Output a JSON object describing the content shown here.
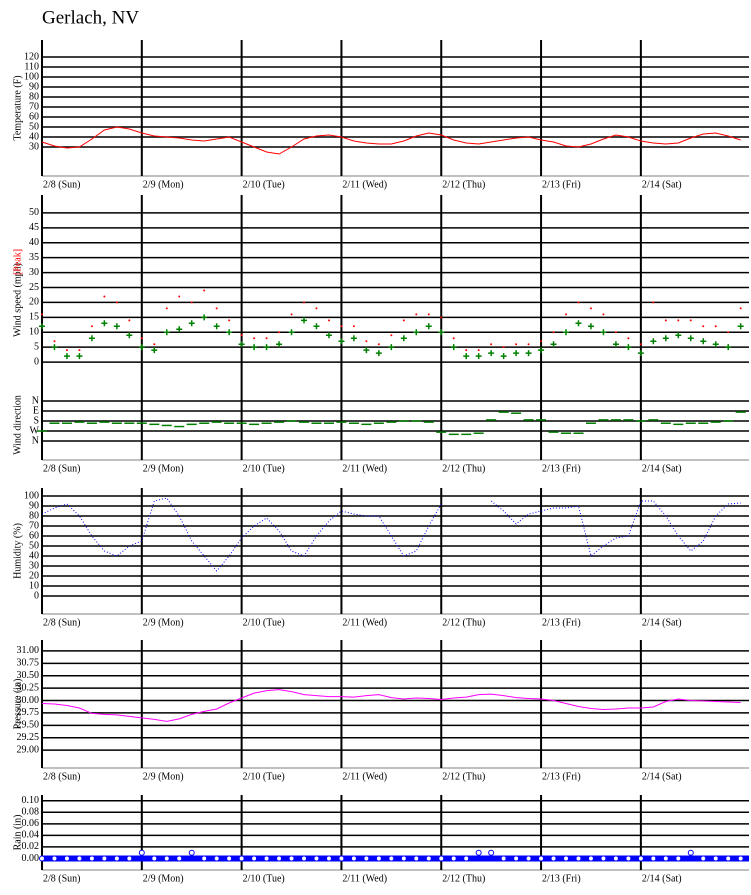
{
  "chart_data": [
    {
      "type": "line",
      "title": "Gerlach, NV",
      "ylabel": "Temperature (F)",
      "x": [
        0,
        3,
        6,
        9,
        12,
        15,
        18,
        21,
        24,
        27,
        30,
        33,
        36,
        39,
        42,
        45,
        48,
        51,
        54,
        57,
        60,
        63,
        66,
        69,
        72,
        75,
        78,
        81,
        84,
        87,
        90,
        93,
        96,
        99,
        102,
        105,
        108,
        111,
        114,
        117,
        120,
        123,
        126,
        129,
        132,
        135,
        138,
        141,
        144,
        147,
        150,
        153,
        156,
        159,
        162,
        165,
        168
      ],
      "xlim": [
        0,
        170
      ],
      "xticks": [
        {
          "value": 0,
          "label": "2/8 (Sun)"
        },
        {
          "value": 24,
          "label": "2/9 (Mon)"
        },
        {
          "value": 48,
          "label": "2/10 (Tue)"
        },
        {
          "value": 72,
          "label": "2/11 (Wed)"
        },
        {
          "value": 96,
          "label": "2/12 (Thu)"
        },
        {
          "value": 120,
          "label": "2/13 (Fri)"
        },
        {
          "value": 144,
          "label": "2/14 (Sat)"
        }
      ],
      "ylim": [
        1,
        137
      ],
      "yticks": [
        30,
        40,
        50,
        60,
        70,
        80,
        90,
        100,
        110,
        120
      ],
      "grid": true,
      "series": [
        {
          "color": "#ff0000",
          "marker": "line",
          "values": [
            35,
            31,
            29,
            30,
            38,
            47,
            50,
            48,
            44,
            41,
            40,
            39,
            37,
            36,
            38,
            40,
            35,
            30,
            25,
            23,
            30,
            38,
            41,
            42,
            40,
            36,
            34,
            33,
            33,
            36,
            41,
            44,
            42,
            37,
            34,
            33,
            35,
            37,
            39,
            40,
            37,
            35,
            31,
            30,
            33,
            38,
            42,
            40,
            36,
            34,
            33,
            34,
            39,
            43,
            44,
            41,
            37
          ]
        }
      ]
    },
    {
      "type": "scatter",
      "ylabel": "Wind speed (mph)",
      "y2label": "Wind direction",
      "x": [
        0,
        3,
        6,
        9,
        12,
        15,
        18,
        21,
        24,
        27,
        30,
        33,
        36,
        39,
        42,
        45,
        48,
        51,
        54,
        57,
        60,
        63,
        66,
        69,
        72,
        75,
        78,
        81,
        84,
        87,
        90,
        93,
        96,
        99,
        102,
        105,
        108,
        111,
        114,
        117,
        120,
        123,
        126,
        129,
        132,
        135,
        138,
        141,
        144,
        147,
        150,
        153,
        156,
        159,
        162,
        165,
        168
      ],
      "xlim": [
        0,
        170
      ],
      "xticks": [
        {
          "value": 0,
          "label": "2/8 (Sun)"
        },
        {
          "value": 24,
          "label": "2/9 (Mon)"
        },
        {
          "value": 48,
          "label": "2/10 (Tue)"
        },
        {
          "value": 72,
          "label": "2/11 (Wed)"
        },
        {
          "value": 96,
          "label": "2/12 (Thu)"
        },
        {
          "value": 120,
          "label": "2/13 (Fri)"
        },
        {
          "value": 144,
          "label": "2/14 (Sat)"
        }
      ],
      "ylim": [
        -6,
        56
      ],
      "yticks": [
        0,
        5,
        10,
        15,
        20,
        25,
        30,
        35,
        40,
        45,
        50
      ],
      "y2lim": [
        405,
        -45
      ],
      "y2ticks": [
        {
          "value": 0,
          "label": "N"
        },
        {
          "value": 90,
          "label": "E"
        },
        {
          "value": 180,
          "label": "S"
        },
        {
          "value": 270,
          "label": "W"
        },
        {
          "value": 360,
          "label": "N"
        }
      ],
      "grid": true,
      "series": [
        {
          "name": "[Peak]",
          "color": "#ff0000",
          "marker": "dot",
          "values": [
            16,
            7,
            4,
            4,
            12,
            22,
            20,
            14,
            8,
            6,
            18,
            22,
            20,
            24,
            18,
            14,
            9,
            8,
            8,
            10,
            16,
            20,
            18,
            14,
            12,
            12,
            7,
            6,
            9,
            14,
            16,
            16,
            15,
            8,
            4,
            4,
            6,
            5,
            6,
            6,
            7,
            10,
            16,
            20,
            18,
            16,
            10,
            8,
            6,
            20,
            14,
            14,
            14,
            12,
            12,
            10,
            18
          ]
        },
        {
          "color": "#008000",
          "marker": "plus",
          "values": [
            12,
            5,
            2,
            2,
            8,
            13,
            12,
            9,
            5,
            4,
            10,
            11,
            13,
            15,
            12,
            10,
            6,
            5,
            5,
            6,
            10,
            14,
            12,
            9,
            7,
            8,
            4,
            3,
            5,
            8,
            10,
            12,
            10,
            5,
            2,
            2,
            3,
            2,
            3,
            3,
            4,
            6,
            10,
            13,
            12,
            10,
            6,
            5,
            3,
            7,
            8,
            9,
            8,
            7,
            6,
            5,
            12
          ]
        },
        {
          "color": "#008000",
          "marker": "dash",
          "axis": "y2",
          "values": [
            270,
            200,
            200,
            190,
            200,
            190,
            200,
            200,
            200,
            210,
            220,
            230,
            210,
            200,
            190,
            200,
            200,
            210,
            200,
            190,
            180,
            190,
            200,
            200,
            190,
            200,
            210,
            200,
            190,
            180,
            180,
            190,
            280,
            300,
            300,
            290,
            170,
            100,
            110,
            170,
            170,
            280,
            290,
            290,
            200,
            170,
            170,
            170,
            180,
            170,
            200,
            210,
            200,
            200,
            190,
            180,
            100
          ]
        }
      ]
    },
    {
      "type": "line",
      "ylabel": "Humidity (%)",
      "x": [
        0,
        3,
        6,
        9,
        12,
        15,
        18,
        21,
        24,
        27,
        30,
        33,
        36,
        39,
        42,
        45,
        48,
        51,
        54,
        57,
        60,
        63,
        66,
        69,
        72,
        75,
        78,
        81,
        84,
        87,
        90,
        93,
        96,
        99,
        102,
        105,
        108,
        111,
        114,
        117,
        120,
        123,
        126,
        129,
        132,
        135,
        138,
        141,
        144,
        147,
        150,
        153,
        156,
        159,
        162,
        165,
        168
      ],
      "xlim": [
        0,
        170
      ],
      "xticks": [
        {
          "value": 0,
          "label": "2/8 (Sun)"
        },
        {
          "value": 24,
          "label": "2/9 (Mon)"
        },
        {
          "value": 48,
          "label": "2/10 (Tue)"
        },
        {
          "value": 72,
          "label": "2/11 (Wed)"
        },
        {
          "value": 96,
          "label": "2/12 (Thu)"
        },
        {
          "value": 120,
          "label": "2/13 (Fri)"
        },
        {
          "value": 144,
          "label": "2/14 (Sat)"
        }
      ],
      "ylim": [
        -18,
        108
      ],
      "yticks": [
        0,
        10,
        20,
        30,
        40,
        50,
        60,
        70,
        80,
        90,
        100
      ],
      "grid": true,
      "series": [
        {
          "color": "#0000ff",
          "marker": "dotted-line",
          "values": [
            82,
            88,
            92,
            80,
            60,
            45,
            40,
            50,
            55,
            95,
            98,
            80,
            55,
            40,
            25,
            40,
            58,
            70,
            78,
            65,
            45,
            40,
            60,
            75,
            85,
            82,
            80,
            80,
            60,
            40,
            45,
            70,
            92,
            null,
            null,
            null,
            95,
            85,
            72,
            82,
            85,
            88,
            88,
            90,
            40,
            50,
            58,
            60,
            95,
            95,
            80,
            60,
            45,
            55,
            80,
            92,
            93
          ]
        }
      ]
    },
    {
      "type": "line",
      "ylabel": "Pressure (in)",
      "x": [
        0,
        3,
        6,
        9,
        12,
        15,
        18,
        21,
        24,
        27,
        30,
        33,
        36,
        39,
        42,
        45,
        48,
        51,
        54,
        57,
        60,
        63,
        66,
        69,
        72,
        75,
        78,
        81,
        84,
        87,
        90,
        93,
        96,
        99,
        102,
        105,
        108,
        111,
        114,
        117,
        120,
        123,
        126,
        129,
        132,
        135,
        138,
        141,
        144,
        147,
        150,
        153,
        156,
        159,
        162,
        165,
        168
      ],
      "xlim": [
        0,
        170
      ],
      "xticks": [
        {
          "value": 0,
          "label": "2/8 (Sun)"
        },
        {
          "value": 24,
          "label": "2/9 (Mon)"
        },
        {
          "value": 48,
          "label": "2/10 (Tue)"
        },
        {
          "value": 72,
          "label": "2/11 (Wed)"
        },
        {
          "value": 96,
          "label": "2/12 (Thu)"
        },
        {
          "value": 120,
          "label": "2/13 (Fri)"
        },
        {
          "value": 144,
          "label": "2/14 (Sat)"
        }
      ],
      "ylim": [
        28.64,
        31.22
      ],
      "yticks": [
        {
          "value": 29,
          "label": "29.00"
        },
        {
          "value": 29.25,
          "label": "29.25"
        },
        {
          "value": 29.5,
          "label": "29.50"
        },
        {
          "value": 29.75,
          "label": "29.75"
        },
        {
          "value": 30,
          "label": "30.00"
        },
        {
          "value": 30.25,
          "label": "30.25"
        },
        {
          "value": 30.5,
          "label": "30.50"
        },
        {
          "value": 30.75,
          "label": "30.75"
        },
        {
          "value": 31,
          "label": "31.00"
        }
      ],
      "grid": true,
      "series": [
        {
          "color": "#ff00ff",
          "marker": "line",
          "values": [
            29.94,
            29.93,
            29.9,
            29.85,
            29.74,
            29.72,
            29.71,
            29.68,
            29.65,
            29.62,
            29.58,
            29.63,
            29.72,
            29.78,
            29.83,
            29.95,
            30.05,
            30.15,
            30.2,
            30.22,
            30.18,
            30.12,
            30.1,
            30.08,
            30.08,
            30.07,
            30.1,
            30.12,
            30.06,
            30.03,
            30.05,
            30.04,
            30.02,
            30.05,
            30.07,
            30.12,
            30.13,
            30.1,
            30.06,
            30.04,
            30.03,
            30,
            29.94,
            29.88,
            29.84,
            29.82,
            29.83,
            29.85,
            29.85,
            29.87,
            29.98,
            30.03,
            30,
            29.99,
            29.98,
            29.97,
            29.96
          ]
        }
      ]
    },
    {
      "type": "scatter",
      "ylabel": "Rain (in)",
      "zero_line": true,
      "x": [
        0,
        3,
        6,
        9,
        12,
        15,
        18,
        21,
        24,
        27,
        30,
        33,
        36,
        39,
        42,
        45,
        48,
        51,
        54,
        57,
        60,
        63,
        66,
        69,
        72,
        75,
        78,
        81,
        84,
        87,
        90,
        93,
        96,
        99,
        102,
        105,
        108,
        111,
        114,
        117,
        120,
        123,
        126,
        129,
        132,
        135,
        138,
        141,
        144,
        147,
        150,
        153,
        156,
        159,
        162,
        165,
        168
      ],
      "xlim": [
        0,
        170
      ],
      "xticks": [
        {
          "value": 0,
          "label": "2/8 (Sun)"
        },
        {
          "value": 24,
          "label": "2/9 (Mon)"
        },
        {
          "value": 48,
          "label": "2/10 (Tue)"
        },
        {
          "value": 72,
          "label": "2/11 (Wed)"
        },
        {
          "value": 96,
          "label": "2/12 (Thu)"
        },
        {
          "value": 120,
          "label": "2/13 (Fri)"
        },
        {
          "value": 144,
          "label": "2/14 (Sat)"
        }
      ],
      "ylim": [
        -0.02,
        0.11
      ],
      "yticks": [
        {
          "value": 0,
          "label": "0.00"
        },
        {
          "value": 0.02,
          "label": "0.02"
        },
        {
          "value": 0.04,
          "label": "0.04"
        },
        {
          "value": 0.06,
          "label": "0.06"
        },
        {
          "value": 0.08,
          "label": "0.08"
        },
        {
          "value": 0.1,
          "label": "0.10"
        }
      ],
      "grid": true,
      "series": [
        {
          "color": "#0000ff",
          "marker": "circle",
          "values": [
            0,
            0,
            0,
            0,
            0,
            0,
            0,
            0,
            0.01,
            0,
            0,
            0,
            0.01,
            0,
            0,
            0,
            0,
            0,
            0,
            0,
            0,
            0,
            0,
            0,
            0,
            0,
            0,
            0,
            0,
            0,
            0,
            0,
            0,
            0,
            0,
            0.01,
            0.01,
            0,
            0,
            0,
            0,
            0,
            0,
            0,
            0,
            0,
            0,
            0,
            0,
            0,
            0,
            0,
            0.01,
            0,
            0,
            0,
            0
          ]
        }
      ]
    }
  ]
}
